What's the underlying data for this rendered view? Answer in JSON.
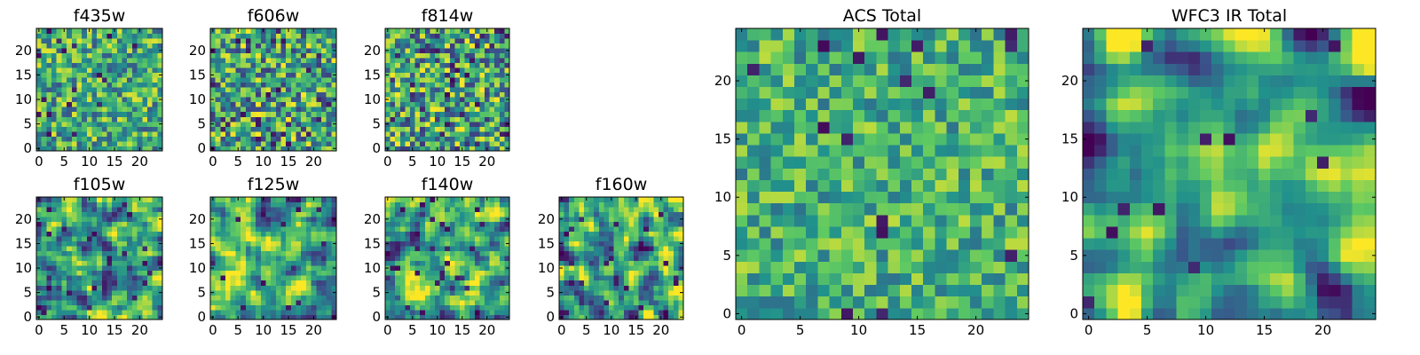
{
  "figure": {
    "layout": "1x2 small-multiple grid of 7 filter images plus 2 large total images",
    "colormap": [
      "#440154",
      "#3b528b",
      "#21918c",
      "#5ec962",
      "#fde725"
    ]
  },
  "chart_data": [
    {
      "type": "heatmap",
      "title": "f435w",
      "size": 25,
      "xlim": [
        0,
        24
      ],
      "ylim": [
        0,
        24
      ],
      "xticks": [
        "0",
        "5",
        "10",
        "15",
        "20"
      ],
      "yticks": [
        "0",
        "5",
        "10",
        "15",
        "20"
      ],
      "pattern": {
        "seed": 11,
        "smooth": 0.0,
        "mean": 0.62,
        "spread": 0.2,
        "dark_fraction": 0.04
      }
    },
    {
      "type": "heatmap",
      "title": "f606w",
      "size": 25,
      "xlim": [
        0,
        24
      ],
      "ylim": [
        0,
        24
      ],
      "xticks": [
        "0",
        "5",
        "10",
        "15",
        "20"
      ],
      "yticks": [
        "0",
        "5",
        "10",
        "15",
        "20"
      ],
      "pattern": {
        "seed": 23,
        "smooth": 0.0,
        "mean": 0.58,
        "spread": 0.24,
        "dark_fraction": 0.04
      }
    },
    {
      "type": "heatmap",
      "title": "f814w",
      "size": 25,
      "xlim": [
        0,
        24
      ],
      "ylim": [
        0,
        24
      ],
      "xticks": [
        "0",
        "5",
        "10",
        "15",
        "20"
      ],
      "yticks": [
        "0",
        "5",
        "10",
        "15",
        "20"
      ],
      "pattern": {
        "seed": 37,
        "smooth": 0.0,
        "mean": 0.58,
        "spread": 0.25,
        "dark_fraction": 0.05
      }
    },
    {
      "type": "heatmap",
      "title": "f105w",
      "size": 25,
      "xlim": [
        0,
        24
      ],
      "ylim": [
        0,
        24
      ],
      "xticks": [
        "0",
        "5",
        "10",
        "15",
        "20"
      ],
      "yticks": [
        "0",
        "5",
        "10",
        "15",
        "20"
      ],
      "pattern": {
        "seed": 41,
        "smooth": 1.0,
        "mean": 0.55,
        "spread": 0.22,
        "dark_fraction": 0.04
      }
    },
    {
      "type": "heatmap",
      "title": "f125w",
      "size": 25,
      "xlim": [
        0,
        24
      ],
      "ylim": [
        0,
        24
      ],
      "xticks": [
        "0",
        "5",
        "10",
        "15",
        "20"
      ],
      "yticks": [
        "0",
        "5",
        "10",
        "15",
        "20"
      ],
      "pattern": {
        "seed": 53,
        "smooth": 1.0,
        "mean": 0.6,
        "spread": 0.22,
        "dark_fraction": 0.03
      }
    },
    {
      "type": "heatmap",
      "title": "f140w",
      "size": 25,
      "xlim": [
        0,
        24
      ],
      "ylim": [
        0,
        24
      ],
      "xticks": [
        "0",
        "5",
        "10",
        "15",
        "20"
      ],
      "yticks": [
        "0",
        "5",
        "10",
        "15",
        "20"
      ],
      "pattern": {
        "seed": 67,
        "smooth": 1.0,
        "mean": 0.6,
        "spread": 0.22,
        "dark_fraction": 0.03
      }
    },
    {
      "type": "heatmap",
      "title": "f160w",
      "size": 25,
      "xlim": [
        0,
        24
      ],
      "ylim": [
        0,
        24
      ],
      "xticks": [
        "0",
        "5",
        "10",
        "15",
        "20"
      ],
      "yticks": [
        "0",
        "5",
        "10",
        "15",
        "20"
      ],
      "pattern": {
        "seed": 79,
        "smooth": 1.0,
        "mean": 0.58,
        "spread": 0.24,
        "dark_fraction": 0.04
      }
    },
    {
      "type": "heatmap",
      "title": "ACS Total",
      "size": 25,
      "xlim": [
        0,
        24
      ],
      "ylim": [
        0,
        24
      ],
      "xticks": [
        "0",
        "5",
        "10",
        "15",
        "20"
      ],
      "yticks": [
        "0",
        "5",
        "10",
        "15",
        "20"
      ],
      "pattern": {
        "seed": 97,
        "smooth": 0.0,
        "mean": 0.64,
        "spread": 0.16,
        "dark_fraction": 0.03
      }
    },
    {
      "type": "heatmap",
      "title": "WFC3 IR Total",
      "size": 25,
      "xlim": [
        0,
        24
      ],
      "ylim": [
        0,
        24
      ],
      "xticks": [
        "0",
        "5",
        "10",
        "15",
        "20"
      ],
      "yticks": [
        "0",
        "5",
        "10",
        "15",
        "20"
      ],
      "pattern": {
        "seed": 113,
        "smooth": 2.0,
        "mean": 0.58,
        "spread": 0.22,
        "dark_fraction": 0.02
      }
    }
  ]
}
